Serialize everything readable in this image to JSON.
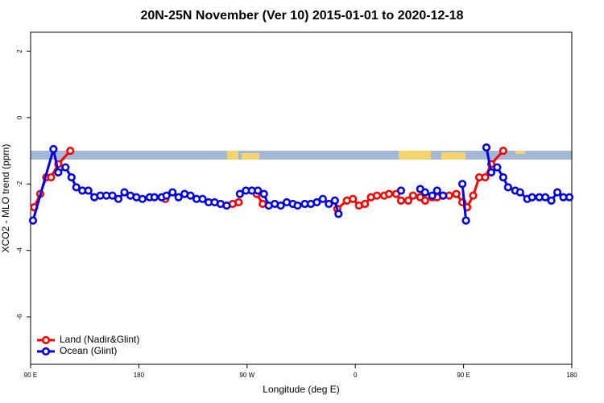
{
  "chart_data": {
    "type": "line",
    "title": "20N-25N November (Ver 10)   2015-01-01 to 2020-12-18",
    "xlabel": "Longitude (deg E)",
    "ylabel": "XCO2 - MLO trend (ppm)",
    "xlim": [
      90,
      540
    ],
    "ylim": [
      -7.43,
      2.57
    ],
    "xticks": [
      {
        "value": 90,
        "label": "90 E"
      },
      {
        "value": 180,
        "label": "180"
      },
      {
        "value": 270,
        "label": "90 W"
      },
      {
        "value": 360,
        "label": "0"
      },
      {
        "value": 450,
        "label": "90 E"
      },
      {
        "value": 540,
        "label": "180"
      }
    ],
    "yticks": [
      -6,
      -4,
      -2,
      0,
      2
    ],
    "legend": "bottom left",
    "series": [
      {
        "name": "Land (Nadir&Glint)",
        "color": "#ff0000",
        "x": [
          93,
          98,
          103,
          107,
          113,
          123,
          null,
          202,
          null,
          253,
          258,
          263,
          null,
          278,
          283,
          null,
          345,
          353,
          358,
          363,
          368,
          373,
          378,
          384,
          388,
          394,
          398,
          404,
          408,
          414,
          418,
          424,
          428,
          433,
          438,
          444,
          449,
          453,
          458,
          463,
          468,
          473,
          483
        ],
        "values": [
          -2.7,
          -2.3,
          -1.8,
          -1.8,
          -1.4,
          -1.0,
          null,
          -2.45,
          null,
          -2.65,
          -2.6,
          -2.55,
          null,
          -2.3,
          -2.6,
          null,
          -2.75,
          -2.5,
          -2.45,
          -2.65,
          -2.6,
          -2.4,
          -2.35,
          -2.35,
          -2.3,
          -2.3,
          -2.5,
          -2.5,
          -2.35,
          -2.4,
          -2.5,
          -2.4,
          -2.4,
          -2.35,
          -2.35,
          -2.3,
          -2.55,
          -2.7,
          -2.35,
          -1.8,
          -1.8,
          -1.4,
          -1.0
        ]
      },
      {
        "name": "Ocean (Glint)",
        "color": "#0000ee",
        "x": [
          92,
          109,
          113,
          119,
          124,
          128,
          133,
          138,
          143,
          148,
          153,
          158,
          163,
          168,
          173,
          178,
          183,
          189,
          193,
          199,
          203,
          208,
          213,
          218,
          223,
          228,
          233,
          238,
          243,
          248,
          253,
          null,
          264,
          269,
          274,
          279,
          284,
          288,
          293,
          298,
          303,
          308,
          312,
          318,
          323,
          328,
          333,
          338,
          343,
          346,
          null,
          398,
          null,
          414,
          418,
          424,
          428,
          433,
          null,
          449,
          452,
          null,
          469,
          473,
          478,
          483,
          487,
          493,
          497,
          503,
          507,
          513,
          518,
          523,
          528,
          533,
          538
        ],
        "values": [
          -3.1,
          -0.95,
          -1.65,
          -1.5,
          -1.8,
          -2.1,
          -2.2,
          -2.2,
          -2.4,
          -2.35,
          -2.35,
          -2.35,
          -2.45,
          -2.25,
          -2.35,
          -2.4,
          -2.45,
          -2.4,
          -2.4,
          -2.4,
          -2.35,
          -2.25,
          -2.4,
          -2.3,
          -2.35,
          -2.45,
          -2.45,
          -2.55,
          -2.55,
          -2.6,
          -2.65,
          null,
          -2.3,
          -2.2,
          -2.2,
          -2.2,
          -2.3,
          -2.65,
          -2.6,
          -2.65,
          -2.55,
          -2.6,
          -2.65,
          -2.6,
          -2.6,
          -2.55,
          -2.45,
          -2.6,
          -2.5,
          -2.9,
          null,
          -2.2,
          null,
          -2.15,
          -2.25,
          -2.35,
          -2.2,
          -2.35,
          null,
          -2.0,
          -3.1,
          null,
          -0.9,
          -1.65,
          -1.5,
          -1.8,
          -2.1,
          -2.2,
          -2.25,
          -2.45,
          -2.4,
          -2.4,
          -2.4,
          -2.5,
          -2.25,
          -2.4,
          -2.4
        ]
      }
    ]
  }
}
